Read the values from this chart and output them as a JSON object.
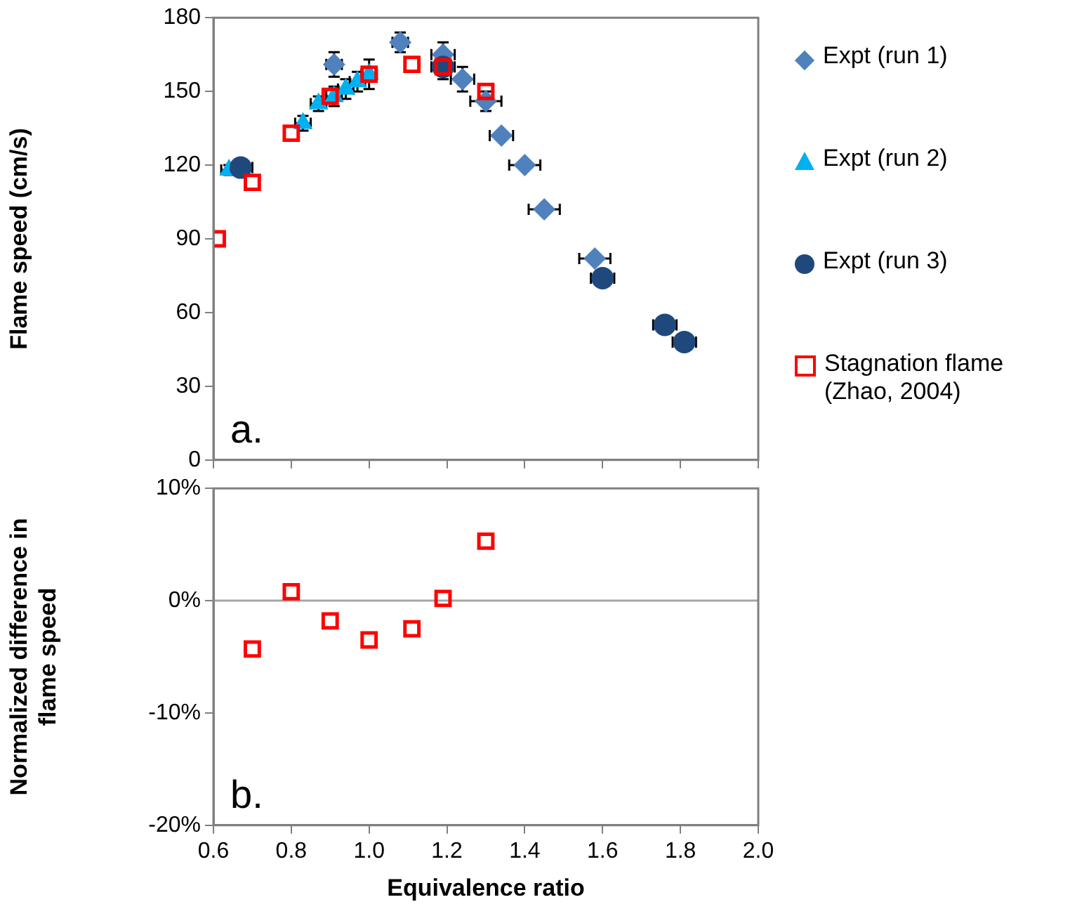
{
  "chart_data": [
    {
      "type": "scatter",
      "ylabel": "Flame speed (cm/s)",
      "xlim": [
        0.6,
        2.0
      ],
      "xticks": [
        0.6,
        0.8,
        1,
        1.2,
        1.4,
        1.6,
        1.8,
        2
      ],
      "ylim": [
        0,
        180
      ],
      "yticks": [
        0,
        30,
        60,
        90,
        120,
        150,
        180
      ],
      "tick_labels": "y",
      "grid": false,
      "legend": "right",
      "annotations": [
        "a."
      ],
      "series": [
        {
          "name": "Expt (run 1)",
          "color": "#4f81bd",
          "marker": "diamond",
          "x": [
            0.91,
            1.08,
            1.19,
            1.24,
            1.3,
            1.34,
            1.4,
            1.45,
            1.58
          ],
          "values": [
            161,
            170,
            165,
            155,
            146,
            132,
            120,
            102,
            82
          ],
          "errors": [
            5,
            4,
            5,
            5,
            4,
            null,
            null,
            null,
            null
          ],
          "xerrors": [
            0.02,
            0.02,
            0.03,
            0.03,
            0.04,
            0.03,
            0.04,
            0.04,
            0.04
          ]
        },
        {
          "name": "Expt (run 2)",
          "color": "#00b0f0",
          "marker": "triangle",
          "x": [
            0.64,
            0.83,
            0.87,
            0.91,
            0.94,
            0.97,
            1.0
          ],
          "values": [
            118,
            137,
            145,
            148,
            151,
            154,
            157
          ],
          "errors": [
            2,
            3,
            3,
            4,
            4,
            4,
            6
          ],
          "xerrors": [
            0.02,
            0.02,
            0.02,
            0.02,
            0.02,
            0.02,
            0.02
          ]
        },
        {
          "name": "Expt (run 3)",
          "color": "#1f497d",
          "marker": "circle",
          "x": [
            0.67,
            1.19,
            1.6,
            1.76,
            1.81
          ],
          "values": [
            119,
            160,
            74,
            55,
            48
          ],
          "errors": [
            null,
            5,
            null,
            null,
            null
          ],
          "xerrors": [
            0.03,
            0.03,
            0.03,
            0.03,
            0.03
          ]
        },
        {
          "name": "Stagnation flame (Zhao, 2004)",
          "color": "#ff0000",
          "marker": "square",
          "x": [
            0.61,
            0.7,
            0.8,
            0.9,
            1.0,
            1.11,
            1.19,
            1.3
          ],
          "values": [
            90,
            113,
            133,
            148,
            157,
            161,
            160,
            150
          ]
        }
      ]
    },
    {
      "type": "scatter",
      "xlabel": "Equivalence ratio",
      "ylabel": "Normalized difference in flame speed",
      "xlim": [
        0.6,
        2.0
      ],
      "xticks": [
        0.6,
        0.8,
        {
          "value": 1.0,
          "label": "1.0"
        },
        1.2,
        1.4,
        1.6,
        1.8,
        {
          "value": 2.0,
          "label": "2.0"
        }
      ],
      "ylim": [
        -20,
        10
      ],
      "yticks": [
        {
          "value": -20,
          "label": "-20%"
        },
        {
          "value": -10,
          "label": "-10%"
        },
        {
          "value": 0,
          "label": "0%"
        },
        {
          "value": 10,
          "label": "10%"
        }
      ],
      "grid": false,
      "annotations": [
        "b."
      ],
      "ref_lines": [
        {
          "axis": "y",
          "value": 0,
          "color": "#a6a6a6"
        }
      ],
      "series": [
        {
          "color": "#ff0000",
          "marker": "square",
          "x": [
            0.7,
            0.8,
            0.9,
            1.0,
            1.11,
            1.19,
            1.3
          ],
          "values": [
            -4.3,
            0.8,
            -1.8,
            -3.5,
            -2.5,
            0.2,
            5.3
          ]
        }
      ]
    }
  ]
}
